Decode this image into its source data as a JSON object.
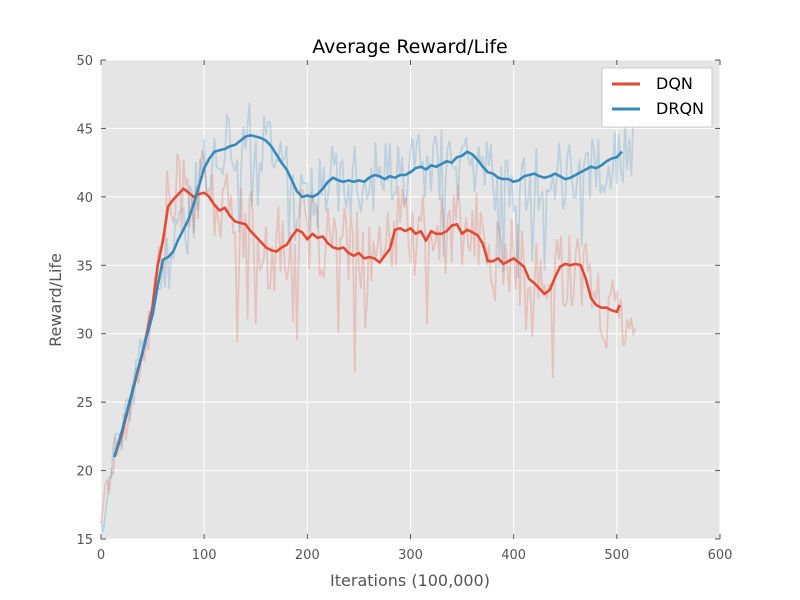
{
  "chart_data": {
    "type": "line",
    "title": "Average Reward/Life",
    "xlabel": "Iterations (100,000)",
    "ylabel": "Reward/Life",
    "xlim": [
      0,
      600
    ],
    "ylim": [
      15,
      50
    ],
    "xticks": [
      "0",
      "100",
      "200",
      "300",
      "400",
      "500",
      "600"
    ],
    "yticks": [
      "15",
      "20",
      "25",
      "30",
      "35",
      "40",
      "45",
      "50"
    ],
    "grid": true,
    "legend_position": "top-right",
    "series": [
      {
        "name": "DQN",
        "color": "#e24a33",
        "smoothed": [
          [
            13,
            21
          ],
          [
            20,
            22.6
          ],
          [
            30,
            25.6
          ],
          [
            40,
            28.5
          ],
          [
            50,
            32
          ],
          [
            55,
            35
          ],
          [
            60,
            36.8
          ],
          [
            65,
            39.3
          ],
          [
            70,
            39.8
          ],
          [
            75,
            40.2
          ],
          [
            80,
            40.6
          ],
          [
            85,
            40.3
          ],
          [
            90,
            40
          ],
          [
            95,
            40.2
          ],
          [
            100,
            40.3
          ],
          [
            105,
            40
          ],
          [
            110,
            39.4
          ],
          [
            115,
            39
          ],
          [
            120,
            39.2
          ],
          [
            125,
            38.6
          ],
          [
            130,
            38.2
          ],
          [
            140,
            38
          ],
          [
            145,
            37.5
          ],
          [
            150,
            37.1
          ],
          [
            155,
            36.7
          ],
          [
            160,
            36.3
          ],
          [
            165,
            36.1
          ],
          [
            170,
            36
          ],
          [
            175,
            36.3
          ],
          [
            180,
            36.5
          ],
          [
            185,
            37.1
          ],
          [
            190,
            37.6
          ],
          [
            195,
            37.4
          ],
          [
            200,
            36.9
          ],
          [
            205,
            37.3
          ],
          [
            210,
            37
          ],
          [
            215,
            37.1
          ],
          [
            220,
            36.6
          ],
          [
            225,
            36.3
          ],
          [
            230,
            36.2
          ],
          [
            235,
            36.3
          ],
          [
            240,
            35.9
          ],
          [
            245,
            35.7
          ],
          [
            250,
            35.9
          ],
          [
            255,
            35.5
          ],
          [
            260,
            35.6
          ],
          [
            265,
            35.5
          ],
          [
            270,
            35.2
          ],
          [
            275,
            35.7
          ],
          [
            280,
            36.2
          ],
          [
            285,
            37.6
          ],
          [
            290,
            37.7
          ],
          [
            295,
            37.5
          ],
          [
            300,
            37.7
          ],
          [
            305,
            37.3
          ],
          [
            310,
            37.5
          ],
          [
            315,
            36.8
          ],
          [
            320,
            37.5
          ],
          [
            325,
            37.3
          ],
          [
            330,
            37.3
          ],
          [
            335,
            37.5
          ],
          [
            340,
            37.9
          ],
          [
            345,
            38
          ],
          [
            350,
            37.3
          ],
          [
            355,
            37.6
          ],
          [
            360,
            37.4
          ],
          [
            365,
            37.2
          ],
          [
            370,
            36.6
          ],
          [
            375,
            35.3
          ],
          [
            380,
            35.3
          ],
          [
            385,
            35.5
          ],
          [
            390,
            35.1
          ],
          [
            395,
            35.3
          ],
          [
            400,
            35.5
          ],
          [
            405,
            35.2
          ],
          [
            410,
            34.9
          ],
          [
            415,
            34
          ],
          [
            420,
            33.7
          ],
          [
            425,
            33.3
          ],
          [
            430,
            32.9
          ],
          [
            435,
            33.2
          ],
          [
            440,
            34.1
          ],
          [
            445,
            34.9
          ],
          [
            450,
            35.1
          ],
          [
            455,
            35
          ],
          [
            460,
            35.1
          ],
          [
            465,
            35
          ],
          [
            470,
            34
          ],
          [
            475,
            32.6
          ],
          [
            480,
            32.1
          ],
          [
            485,
            31.9
          ],
          [
            490,
            31.9
          ],
          [
            495,
            31.7
          ],
          [
            500,
            31.6
          ],
          [
            503,
            32.1
          ]
        ]
      },
      {
        "name": "DRQN",
        "color": "#348abd",
        "smoothed": [
          [
            13,
            21
          ],
          [
            20,
            22.8
          ],
          [
            30,
            25.7
          ],
          [
            40,
            28.6
          ],
          [
            50,
            31.4
          ],
          [
            55,
            33.5
          ],
          [
            60,
            35.4
          ],
          [
            65,
            35.6
          ],
          [
            70,
            36
          ],
          [
            75,
            36.9
          ],
          [
            80,
            37.6
          ],
          [
            85,
            38.4
          ],
          [
            90,
            39.5
          ],
          [
            95,
            40.8
          ],
          [
            100,
            42.1
          ],
          [
            105,
            42.8
          ],
          [
            110,
            43.3
          ],
          [
            115,
            43.4
          ],
          [
            120,
            43.5
          ],
          [
            125,
            43.7
          ],
          [
            130,
            43.8
          ],
          [
            135,
            44.1
          ],
          [
            140,
            44.4
          ],
          [
            145,
            44.5
          ],
          [
            150,
            44.4
          ],
          [
            155,
            44.3
          ],
          [
            160,
            44.1
          ],
          [
            165,
            43.7
          ],
          [
            170,
            43.1
          ],
          [
            175,
            42.5
          ],
          [
            180,
            42
          ],
          [
            185,
            41.2
          ],
          [
            190,
            40.4
          ],
          [
            195,
            40
          ],
          [
            200,
            40.1
          ],
          [
            205,
            40
          ],
          [
            210,
            40.2
          ],
          [
            215,
            40.6
          ],
          [
            220,
            41.1
          ],
          [
            225,
            41.4
          ],
          [
            230,
            41.2
          ],
          [
            235,
            41.1
          ],
          [
            240,
            41.2
          ],
          [
            245,
            41.1
          ],
          [
            250,
            41.2
          ],
          [
            255,
            41.1
          ],
          [
            260,
            41.4
          ],
          [
            265,
            41.6
          ],
          [
            270,
            41.5
          ],
          [
            275,
            41.3
          ],
          [
            280,
            41.5
          ],
          [
            285,
            41.4
          ],
          [
            290,
            41.6
          ],
          [
            295,
            41.6
          ],
          [
            300,
            41.8
          ],
          [
            305,
            42.1
          ],
          [
            310,
            42.2
          ],
          [
            315,
            42
          ],
          [
            320,
            42.3
          ],
          [
            325,
            42.2
          ],
          [
            330,
            42.4
          ],
          [
            335,
            42.6
          ],
          [
            340,
            42.5
          ],
          [
            345,
            42.9
          ],
          [
            350,
            43
          ],
          [
            355,
            43.3
          ],
          [
            360,
            43.1
          ],
          [
            365,
            42.7
          ],
          [
            370,
            42.2
          ],
          [
            375,
            41.8
          ],
          [
            380,
            41.7
          ],
          [
            385,
            41.4
          ],
          [
            390,
            41.3
          ],
          [
            395,
            41.3
          ],
          [
            400,
            41.1
          ],
          [
            405,
            41.2
          ],
          [
            410,
            41.5
          ],
          [
            415,
            41.6
          ],
          [
            420,
            41.7
          ],
          [
            425,
            41.5
          ],
          [
            430,
            41.4
          ],
          [
            435,
            41.5
          ],
          [
            440,
            41.7
          ],
          [
            445,
            41.5
          ],
          [
            450,
            41.3
          ],
          [
            455,
            41.4
          ],
          [
            460,
            41.6
          ],
          [
            465,
            41.8
          ],
          [
            470,
            42
          ],
          [
            475,
            42.2
          ],
          [
            480,
            42.1
          ],
          [
            485,
            42.3
          ],
          [
            490,
            42.6
          ],
          [
            495,
            42.8
          ],
          [
            500,
            42.9
          ],
          [
            505,
            43.3
          ]
        ],
        "raw_note": ""
      }
    ]
  }
}
